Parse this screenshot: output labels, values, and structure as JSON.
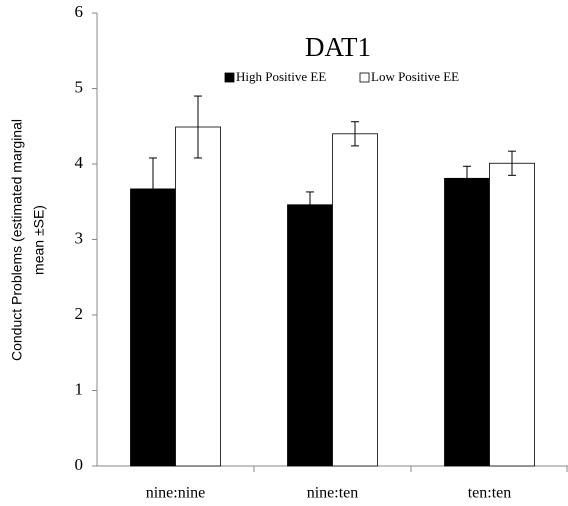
{
  "chart_data": {
    "type": "bar",
    "title": "DAT1",
    "ylabel": [
      "Conduct Problems (estimated marginal",
      "mean ±SE)"
    ],
    "categories": [
      "nine:nine",
      "nine:ten",
      "ten:ten"
    ],
    "series": [
      {
        "name": "High Positive EE",
        "color": "#000000",
        "values": [
          3.67,
          3.46,
          3.81
        ],
        "errors": [
          0.41,
          0.17,
          0.16
        ]
      },
      {
        "name": "Low Positive EE",
        "color": "#ffffff",
        "values": [
          4.49,
          4.4,
          4.01
        ],
        "errors": [
          0.41,
          0.16,
          0.16
        ]
      }
    ],
    "ylim": [
      0,
      6
    ],
    "yticks": [
      0,
      1,
      2,
      3,
      4,
      5,
      6
    ],
    "grid": false
  }
}
